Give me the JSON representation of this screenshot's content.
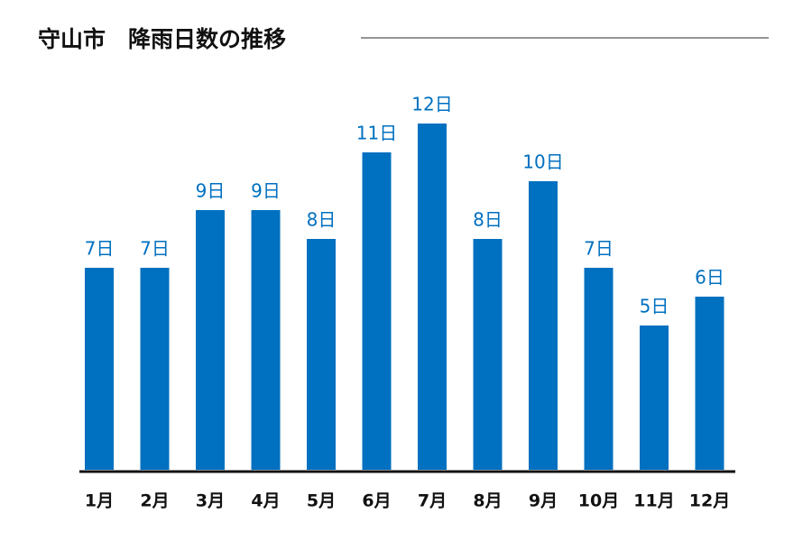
{
  "chart_data": {
    "type": "bar",
    "title": "守山市　降雨日数の推移",
    "categories": [
      "1月",
      "2月",
      "3月",
      "4月",
      "5月",
      "6月",
      "7月",
      "8月",
      "9月",
      "10月",
      "11月",
      "12月"
    ],
    "values": [
      7,
      7,
      9,
      9,
      8,
      11,
      12,
      8,
      10,
      7,
      5,
      6
    ],
    "value_labels": [
      "7日",
      "7日",
      "9日",
      "9日",
      "8日",
      "11日",
      "12日",
      "8日",
      "10日",
      "7日",
      "5日",
      "6日"
    ],
    "color": "#0070c0"
  }
}
